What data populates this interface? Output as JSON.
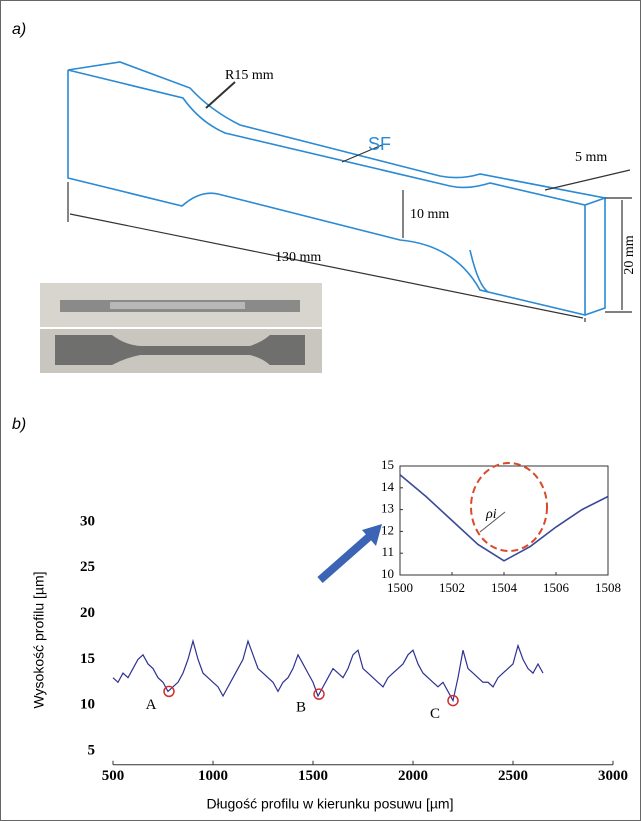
{
  "panel_a": {
    "label": "a)",
    "annotations": {
      "radius": "R15 mm",
      "surface": "SF",
      "thickness": "5 mm",
      "neck_width": "10 mm",
      "length": "130 mm",
      "height": "20 mm"
    }
  },
  "panel_b": {
    "label": "b)"
  },
  "chart_data": {
    "type": "line",
    "xlabel": "Długość profilu w kierunku posuwu [µm]",
    "ylabel": "Wysokość profilu [µm]",
    "xlim": [
      500,
      3000
    ],
    "ylim": [
      3.5,
      30
    ],
    "xticks": [
      500,
      1000,
      1500,
      2000,
      2500,
      3000
    ],
    "yticks": [
      5,
      10,
      15,
      20,
      25,
      30
    ],
    "color": "#2e3192",
    "x": [
      500,
      525,
      550,
      575,
      600,
      625,
      650,
      675,
      700,
      725,
      750,
      775,
      800,
      825,
      850,
      875,
      900,
      925,
      950,
      975,
      1000,
      1025,
      1050,
      1075,
      1100,
      1125,
      1150,
      1175,
      1200,
      1225,
      1250,
      1275,
      1300,
      1325,
      1350,
      1375,
      1400,
      1425,
      1450,
      1475,
      1500,
      1525,
      1550,
      1575,
      1600,
      1625,
      1650,
      1675,
      1700,
      1725,
      1750,
      1775,
      1800,
      1825,
      1850,
      1875,
      1900,
      1925,
      1950,
      1975,
      2000,
      2025,
      2050,
      2075,
      2100,
      2125,
      2150,
      2175,
      2200,
      2225,
      2250,
      2275,
      2300,
      2325,
      2350,
      2375,
      2400,
      2425,
      2450,
      2475,
      2500,
      2525,
      2550,
      2575,
      2600,
      2625,
      2650
    ],
    "values": [
      13,
      12.5,
      13.5,
      13,
      14,
      15,
      15.5,
      14.5,
      14,
      13,
      12.5,
      11.5,
      12,
      12.5,
      13.5,
      15,
      17,
      15,
      13.5,
      13,
      12.5,
      12,
      11,
      12,
      13,
      14,
      15,
      17,
      15.5,
      14,
      13.5,
      13,
      12.5,
      11.5,
      12.5,
      13,
      14,
      15.5,
      14.5,
      13.5,
      12.5,
      11,
      12,
      13,
      14,
      13.5,
      13,
      14,
      15.5,
      16,
      14,
      13.5,
      13,
      12.5,
      12,
      13,
      13.5,
      14,
      14.5,
      15.5,
      16,
      14.5,
      13.5,
      13,
      12.5,
      12,
      12.5,
      11.5,
      10.5,
      13,
      16,
      14,
      13.5,
      13,
      12.5,
      12.5,
      12,
      13,
      13.5,
      14,
      14.5,
      16.5,
      15,
      14,
      13.5,
      14.5,
      13.5
    ],
    "points": [
      {
        "label": "A",
        "x": 780,
        "y": 11.5
      },
      {
        "label": "B",
        "x": 1530,
        "y": 11.2
      },
      {
        "label": "C",
        "x": 2200,
        "y": 10.5
      }
    ],
    "point_color": "#d03030",
    "inset": {
      "xlim": [
        1500,
        1508
      ],
      "ylim": [
        10,
        15
      ],
      "xticks": [
        1500,
        1502,
        1504,
        1506,
        1508
      ],
      "yticks": [
        10,
        11,
        12,
        13,
        14,
        15
      ],
      "x": [
        1500,
        1501,
        1502,
        1503,
        1504,
        1505,
        1506,
        1507,
        1508
      ],
      "values": [
        14.6,
        13.6,
        12.5,
        11.4,
        10.65,
        11.3,
        12.2,
        13.0,
        13.6
      ],
      "color": "#3a4a9a",
      "circle_label": "ρi"
    }
  }
}
